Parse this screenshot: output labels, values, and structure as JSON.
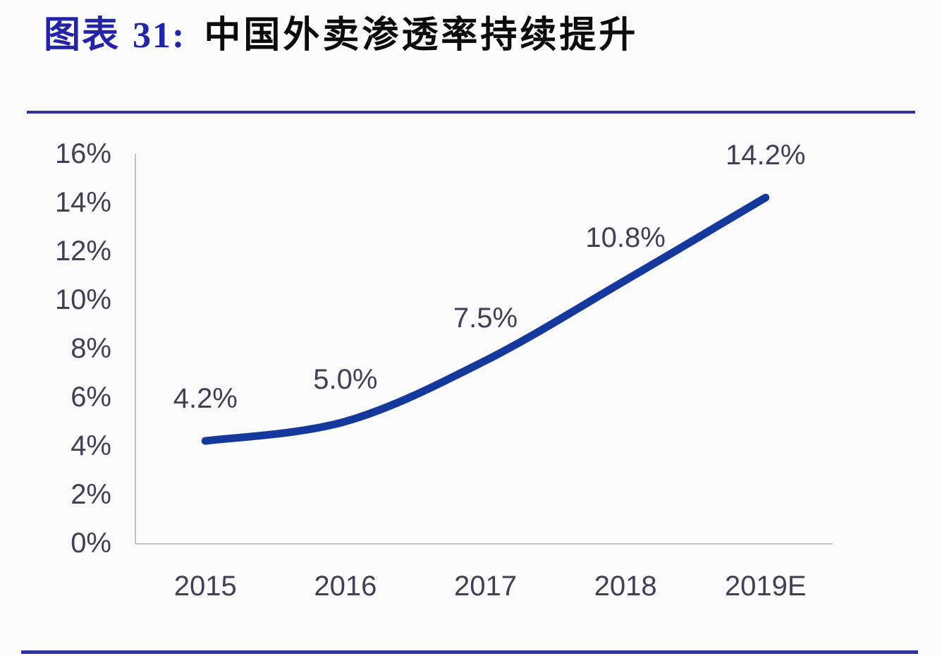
{
  "header": {
    "label": "图表",
    "number": "31:",
    "title": "中国外卖渗透率持续提升"
  },
  "colors": {
    "title_navy": "#2323a6",
    "divider_navy": "#31319c",
    "line_blue": "#14389b",
    "axis_text": "#413f54",
    "axis_line": "#c3c3c6",
    "background": "#fbfafb"
  },
  "chart_data": {
    "type": "line",
    "title": "中国外卖渗透率持续提升",
    "categories": [
      "2015",
      "2016",
      "2017",
      "2018",
      "2019E"
    ],
    "values": [
      4.2,
      5.0,
      7.5,
      10.8,
      14.2
    ],
    "data_labels": [
      "4.2%",
      "5.0%",
      "7.5%",
      "10.8%",
      "14.2%"
    ],
    "xlabel": "",
    "ylabel": "",
    "ylim": [
      0,
      16
    ],
    "ytick_values": [
      0,
      2,
      4,
      6,
      8,
      10,
      12,
      14,
      16
    ],
    "ytick_labels": [
      "0%",
      "2%",
      "4%",
      "6%",
      "8%",
      "10%",
      "12%",
      "14%",
      "16%"
    ],
    "grid": false,
    "legend": false,
    "smooth": true
  }
}
